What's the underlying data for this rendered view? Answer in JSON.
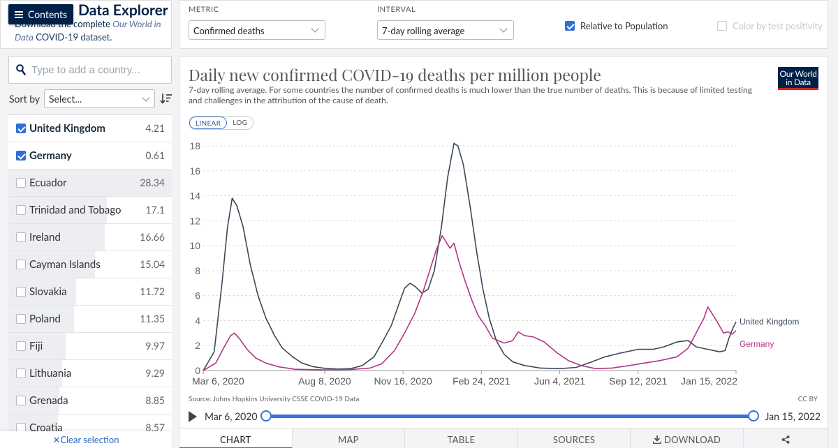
{
  "header": {
    "contents_label": "Contents",
    "title": "Data Explorer",
    "sub_text": "Download the complete ",
    "sub_italic": "Our World in Data",
    "sub_link": "COVID-19 dataset."
  },
  "search": {
    "placeholder": "Type to add a country..."
  },
  "sort": {
    "label": "Sort by",
    "value": "Select..."
  },
  "countries": [
    {
      "name": "United Kingdom",
      "value": "4.21",
      "selected": true
    },
    {
      "name": "Germany",
      "value": "0.61",
      "selected": true
    },
    {
      "name": "Ecuador",
      "value": "28.34",
      "selected": false
    },
    {
      "name": "Trinidad and Tobago",
      "value": "17.1",
      "selected": false
    },
    {
      "name": "Ireland",
      "value": "16.66",
      "selected": false
    },
    {
      "name": "Cayman Islands",
      "value": "15.04",
      "selected": false
    },
    {
      "name": "Slovakia",
      "value": "11.72",
      "selected": false
    },
    {
      "name": "Poland",
      "value": "11.35",
      "selected": false
    },
    {
      "name": "Fiji",
      "value": "9.97",
      "selected": false
    },
    {
      "name": "Lithuania",
      "value": "9.29",
      "selected": false
    },
    {
      "name": "Grenada",
      "value": "8.85",
      "selected": false
    },
    {
      "name": "Croatia",
      "value": "8.57",
      "selected": false
    }
  ],
  "clear_selection": "✕Clear selection",
  "controls": {
    "metric_label": "METRIC",
    "metric_value": "Confirmed deaths",
    "interval_label": "INTERVAL",
    "interval_value": "7-day rolling average",
    "relative_label": "Relative to Population",
    "relative_checked": true,
    "color_label": "Color by test positivity",
    "color_checked": false
  },
  "chart": {
    "title": "Daily new confirmed COVID-19 deaths per million people",
    "subtitle": "7-day rolling average. For some countries the number of confirmed deaths is much lower than the true number of deaths. This is because of limited testing and challenges in the attribution of the cause of death.",
    "logo_line1": "Our World",
    "logo_line2": "in Data",
    "scale_linear": "LINEAR",
    "scale_log": "LOG",
    "source": "Source: Johns Hopkins University CSSE COVID-19 Data",
    "license": "CC BY",
    "timeline_start": "Mar 6, 2020",
    "timeline_end": "Jan 15, 2022"
  },
  "tabs": [
    "CHART",
    "MAP",
    "TABLE",
    "SOURCES",
    "DOWNLOAD",
    ""
  ],
  "chart_data": {
    "type": "line",
    "title": "Daily new confirmed COVID-19 deaths per million people",
    "x_range": [
      "2020-03-06",
      "2022-01-15"
    ],
    "ylim": [
      0,
      18
    ],
    "y_ticks": [
      0,
      2,
      4,
      6,
      8,
      10,
      12,
      14,
      16,
      18
    ],
    "x_ticks": [
      {
        "date": "2020-03-06",
        "label": "Mar 6, 2020"
      },
      {
        "date": "2020-08-08",
        "label": "Aug 8, 2020"
      },
      {
        "date": "2020-11-16",
        "label": "Nov 16, 2020"
      },
      {
        "date": "2021-02-24",
        "label": "Feb 24, 2021"
      },
      {
        "date": "2021-06-04",
        "label": "Jun 4, 2021"
      },
      {
        "date": "2021-09-12",
        "label": "Sep 12, 2021"
      },
      {
        "date": "2022-01-15",
        "label": "Jan 15, 2022"
      }
    ],
    "grid": "horizontal",
    "legend": "end-of-line labels",
    "series": [
      {
        "name": "United Kingdom",
        "color": "#3a4859",
        "points": [
          [
            "2020-03-06",
            0
          ],
          [
            "2020-03-20",
            1.5
          ],
          [
            "2020-03-30",
            7
          ],
          [
            "2020-04-06",
            11.5
          ],
          [
            "2020-04-12",
            13.8
          ],
          [
            "2020-04-18",
            13.2
          ],
          [
            "2020-04-26",
            11.5
          ],
          [
            "2020-05-05",
            8.5
          ],
          [
            "2020-05-15",
            6
          ],
          [
            "2020-05-25",
            4.2
          ],
          [
            "2020-06-05",
            2.8
          ],
          [
            "2020-06-15",
            1.8
          ],
          [
            "2020-06-28",
            1.1
          ],
          [
            "2020-07-10",
            0.6
          ],
          [
            "2020-07-25",
            0.3
          ],
          [
            "2020-08-08",
            0.18
          ],
          [
            "2020-08-25",
            0.12
          ],
          [
            "2020-09-10",
            0.15
          ],
          [
            "2020-09-25",
            0.4
          ],
          [
            "2020-10-10",
            1.1
          ],
          [
            "2020-10-20",
            2.2
          ],
          [
            "2020-11-01",
            3.6
          ],
          [
            "2020-11-10",
            5.2
          ],
          [
            "2020-11-18",
            6.6
          ],
          [
            "2020-11-25",
            7
          ],
          [
            "2020-12-02",
            6.7
          ],
          [
            "2020-12-10",
            6.2
          ],
          [
            "2020-12-18",
            6.5
          ],
          [
            "2020-12-26",
            8
          ],
          [
            "2021-01-04",
            11.5
          ],
          [
            "2021-01-12",
            15.5
          ],
          [
            "2021-01-20",
            18.2
          ],
          [
            "2021-01-25",
            18
          ],
          [
            "2021-02-01",
            16.5
          ],
          [
            "2021-02-10",
            13
          ],
          [
            "2021-02-18",
            9.5
          ],
          [
            "2021-02-26",
            6.5
          ],
          [
            "2021-03-06",
            4.2
          ],
          [
            "2021-03-15",
            2.4
          ],
          [
            "2021-03-25",
            1.3
          ],
          [
            "2021-04-05",
            0.7
          ],
          [
            "2021-04-20",
            0.4
          ],
          [
            "2021-05-10",
            0.2
          ],
          [
            "2021-06-04",
            0.15
          ],
          [
            "2021-06-25",
            0.25
          ],
          [
            "2021-07-15",
            0.7
          ],
          [
            "2021-08-01",
            1.1
          ],
          [
            "2021-08-20",
            1.4
          ],
          [
            "2021-09-12",
            1.7
          ],
          [
            "2021-10-01",
            1.7
          ],
          [
            "2021-10-15",
            1.9
          ],
          [
            "2021-11-01",
            2.3
          ],
          [
            "2021-11-15",
            2.4
          ],
          [
            "2021-11-25",
            1.9
          ],
          [
            "2021-12-10",
            1.7
          ],
          [
            "2021-12-25",
            1.5
          ],
          [
            "2022-01-01",
            1.6
          ],
          [
            "2022-01-06",
            2.6
          ],
          [
            "2022-01-11",
            3.4
          ],
          [
            "2022-01-15",
            3.9
          ]
        ]
      },
      {
        "name": "Germany",
        "color": "#b13689",
        "points": [
          [
            "2020-03-06",
            0
          ],
          [
            "2020-03-22",
            0.6
          ],
          [
            "2020-04-01",
            1.8
          ],
          [
            "2020-04-10",
            2.8
          ],
          [
            "2020-04-15",
            3
          ],
          [
            "2020-04-22",
            2.5
          ],
          [
            "2020-05-01",
            1.7
          ],
          [
            "2020-05-12",
            1
          ],
          [
            "2020-05-25",
            0.6
          ],
          [
            "2020-06-10",
            0.3
          ],
          [
            "2020-07-01",
            0.1
          ],
          [
            "2020-08-08",
            0.05
          ],
          [
            "2020-09-10",
            0.08
          ],
          [
            "2020-10-05",
            0.2
          ],
          [
            "2020-10-20",
            0.55
          ],
          [
            "2020-11-05",
            1.6
          ],
          [
            "2020-11-18",
            3
          ],
          [
            "2020-12-01",
            4.6
          ],
          [
            "2020-12-12",
            6.4
          ],
          [
            "2020-12-20",
            8
          ],
          [
            "2020-12-28",
            9.6
          ],
          [
            "2021-01-05",
            10.8
          ],
          [
            "2021-01-10",
            10.3
          ],
          [
            "2021-01-15",
            9.8
          ],
          [
            "2021-01-20",
            10.2
          ],
          [
            "2021-01-26",
            8.8
          ],
          [
            "2021-02-03",
            7.2
          ],
          [
            "2021-02-12",
            5.6
          ],
          [
            "2021-02-20",
            4.4
          ],
          [
            "2021-03-01",
            3.6
          ],
          [
            "2021-03-10",
            2.6
          ],
          [
            "2021-03-25",
            2.2
          ],
          [
            "2021-04-05",
            2.4
          ],
          [
            "2021-04-12",
            3.1
          ],
          [
            "2021-04-20",
            2.8
          ],
          [
            "2021-05-01",
            2.7
          ],
          [
            "2021-05-15",
            2.3
          ],
          [
            "2021-06-01",
            1.4
          ],
          [
            "2021-06-15",
            0.8
          ],
          [
            "2021-07-01",
            0.4
          ],
          [
            "2021-07-20",
            0.15
          ],
          [
            "2021-08-10",
            0.2
          ],
          [
            "2021-09-01",
            0.4
          ],
          [
            "2021-09-20",
            0.6
          ],
          [
            "2021-10-10",
            0.8
          ],
          [
            "2021-11-01",
            1.1
          ],
          [
            "2021-11-15",
            1.8
          ],
          [
            "2021-11-25",
            3
          ],
          [
            "2021-12-05",
            4.2
          ],
          [
            "2021-12-10",
            5.1
          ],
          [
            "2021-12-15",
            4.6
          ],
          [
            "2021-12-22",
            3.9
          ],
          [
            "2021-12-30",
            3
          ],
          [
            "2022-01-05",
            3.1
          ],
          [
            "2022-01-10",
            2.9
          ],
          [
            "2022-01-15",
            3.2
          ]
        ]
      }
    ]
  }
}
